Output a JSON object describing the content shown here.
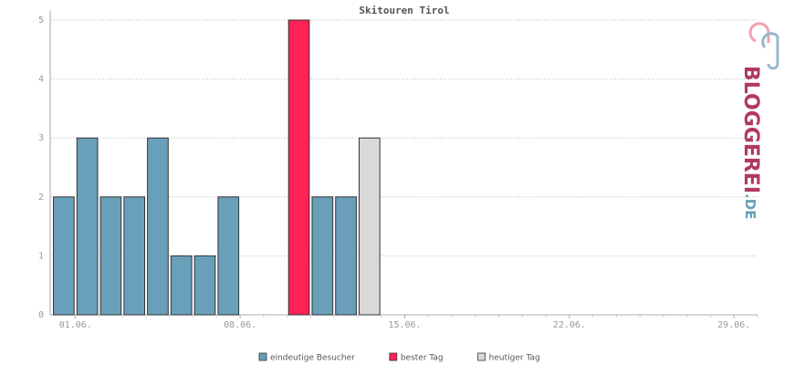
{
  "chart_data": {
    "type": "bar",
    "title": "Skitouren Tirol",
    "categories": [
      "01.06.",
      null,
      null,
      null,
      null,
      null,
      null,
      "08.06.",
      null,
      null,
      null,
      null,
      null,
      null,
      "15.06.",
      null,
      null,
      null,
      null,
      null,
      null,
      "22.06.",
      null,
      null,
      null,
      null,
      null,
      null,
      "29.06.",
      null
    ],
    "values": [
      2,
      3,
      2,
      2,
      3,
      1,
      1,
      2,
      0,
      0,
      5,
      2,
      2,
      3,
      null,
      null,
      null,
      null,
      null,
      null,
      null,
      null,
      null,
      null,
      null,
      null,
      null,
      null,
      null,
      null
    ],
    "colors": [
      "#6a9fba",
      "#6a9fba",
      "#6a9fba",
      "#6a9fba",
      "#6a9fba",
      "#6a9fba",
      "#6a9fba",
      "#6a9fba",
      "#6a9fba",
      "#6a9fba",
      "#ff2157",
      "#6a9fba",
      "#6a9fba",
      "#d9d9d9",
      null,
      null,
      null,
      null,
      null,
      null,
      null,
      null,
      null,
      null,
      null,
      null,
      null,
      null,
      null,
      null
    ],
    "legend": [
      {
        "name": "eindeutige Besucher",
        "color": "#6a9fba"
      },
      {
        "name": "bester Tag",
        "color": "#ff2157"
      },
      {
        "name": "heutiger Tag",
        "color": "#d9d9d9"
      }
    ],
    "ylim": [
      0,
      5
    ],
    "yticks": [
      0,
      1,
      2,
      3,
      4,
      5
    ],
    "grid": true,
    "logo": {
      "name": "BLOGGEREI",
      "suffix": ".DE"
    }
  }
}
